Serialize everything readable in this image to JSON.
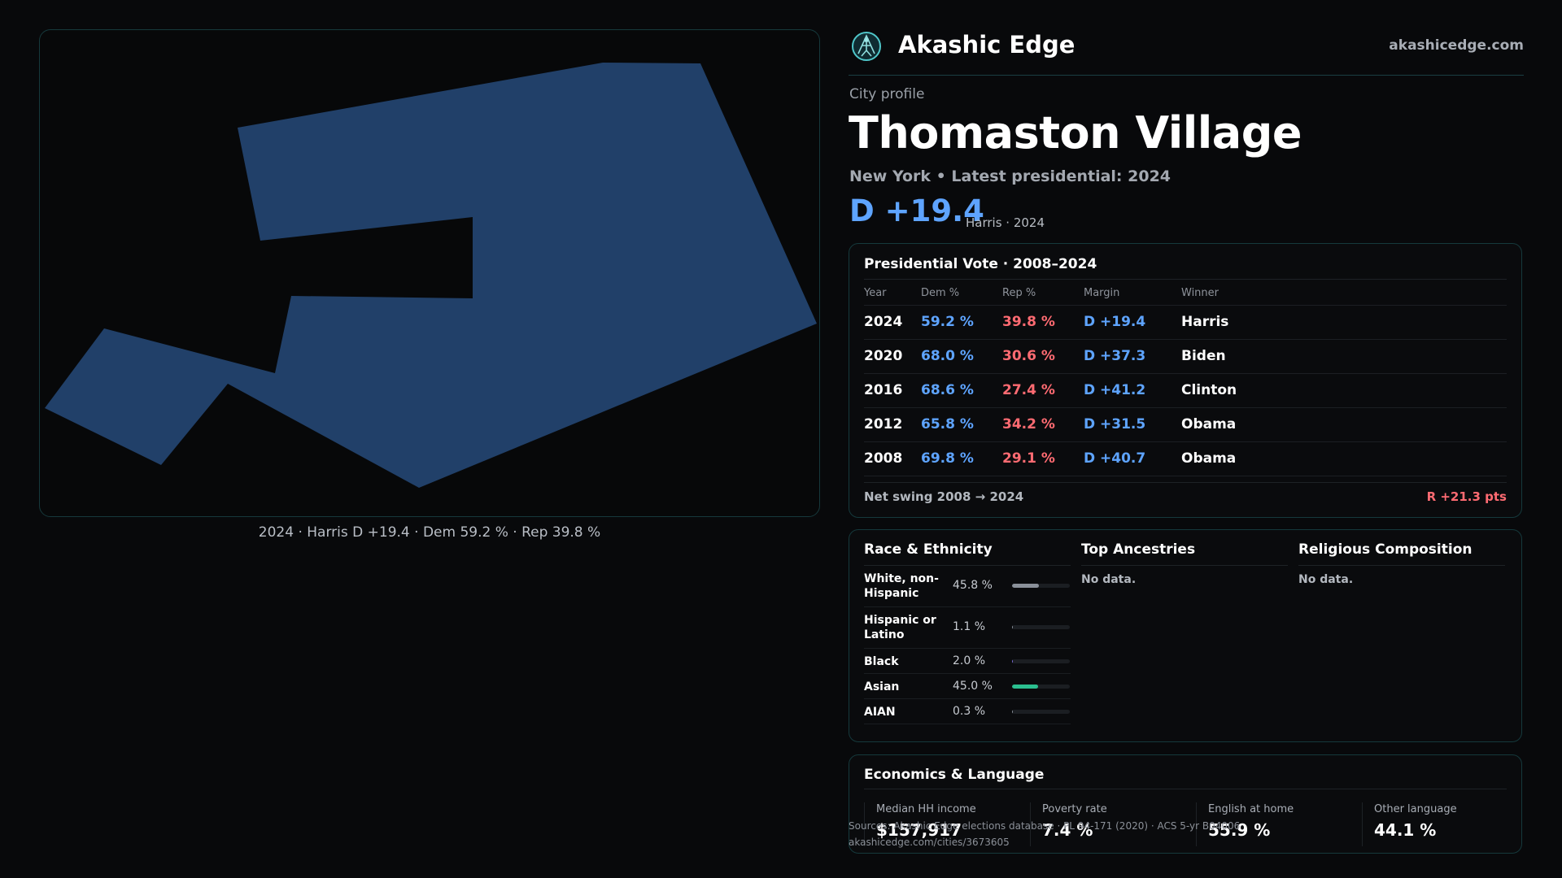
{
  "brand": {
    "name": "Akashic Edge",
    "domain": "akashicedge.com"
  },
  "profile": {
    "kicker": "City profile",
    "city": "Thomaston Village",
    "subline": "New York  • Latest presidential: 2024",
    "margin": "D +19.4",
    "margin_note": "Harris · 2024"
  },
  "map": {
    "caption": "2024 · Harris D +19.4 · Dem 59.2 % · Rep 39.8 %",
    "fill_color": "#214069"
  },
  "vote": {
    "title": "Presidential Vote · 2008–2024",
    "headers": {
      "year": "Year",
      "dem": "Dem %",
      "rep": "Rep %",
      "margin": "Margin",
      "winner": "Winner"
    },
    "rows": [
      {
        "year": "2024",
        "dem": "59.2 %",
        "rep": "39.8 %",
        "margin": "D +19.4",
        "winner": "Harris"
      },
      {
        "year": "2020",
        "dem": "68.0 %",
        "rep": "30.6 %",
        "margin": "D +37.3",
        "winner": "Biden"
      },
      {
        "year": "2016",
        "dem": "68.6 %",
        "rep": "27.4 %",
        "margin": "D +41.2",
        "winner": "Clinton"
      },
      {
        "year": "2012",
        "dem": "65.8 %",
        "rep": "34.2 %",
        "margin": "D +31.5",
        "winner": "Obama"
      },
      {
        "year": "2008",
        "dem": "69.8 %",
        "rep": "29.1 %",
        "margin": "D +40.7",
        "winner": "Obama"
      }
    ],
    "swing_label": "Net swing 2008 → 2024",
    "swing_value": "R +21.3 pts"
  },
  "race": {
    "title": "Race & Ethnicity",
    "rows": [
      {
        "name": "White, non-Hispanic",
        "pct": "45.8 %",
        "fraction": 0.458,
        "color": "#8a9099"
      },
      {
        "name": "Hispanic or Latino",
        "pct": "1.1 %",
        "fraction": 0.011,
        "color": "#8a9099"
      },
      {
        "name": "Black",
        "pct": "2.0 %",
        "fraction": 0.02,
        "color": "#7a6bd6"
      },
      {
        "name": "Asian",
        "pct": "45.0 %",
        "fraction": 0.45,
        "color": "#2bbf8f"
      },
      {
        "name": "AIAN",
        "pct": "0.3 %",
        "fraction": 0.003,
        "color": "#8a9099"
      }
    ]
  },
  "ancestries": {
    "title": "Top Ancestries",
    "empty": "No data."
  },
  "religion": {
    "title": "Religious Composition",
    "empty": "No data."
  },
  "economics": {
    "title": "Economics & Language",
    "stats": [
      {
        "label": "Median HH income",
        "value": "$157,917"
      },
      {
        "label": "Poverty rate",
        "value": "7.4 %"
      },
      {
        "label": "English at home",
        "value": "55.9 %"
      },
      {
        "label": "Other language",
        "value": "44.1 %"
      }
    ]
  },
  "source": {
    "line1": "Sources: Akashic Edge elections database · PL 94-171 (2020) · ACS 5-yr B04006",
    "line2": "akashicedge.com/cities/3673605"
  }
}
